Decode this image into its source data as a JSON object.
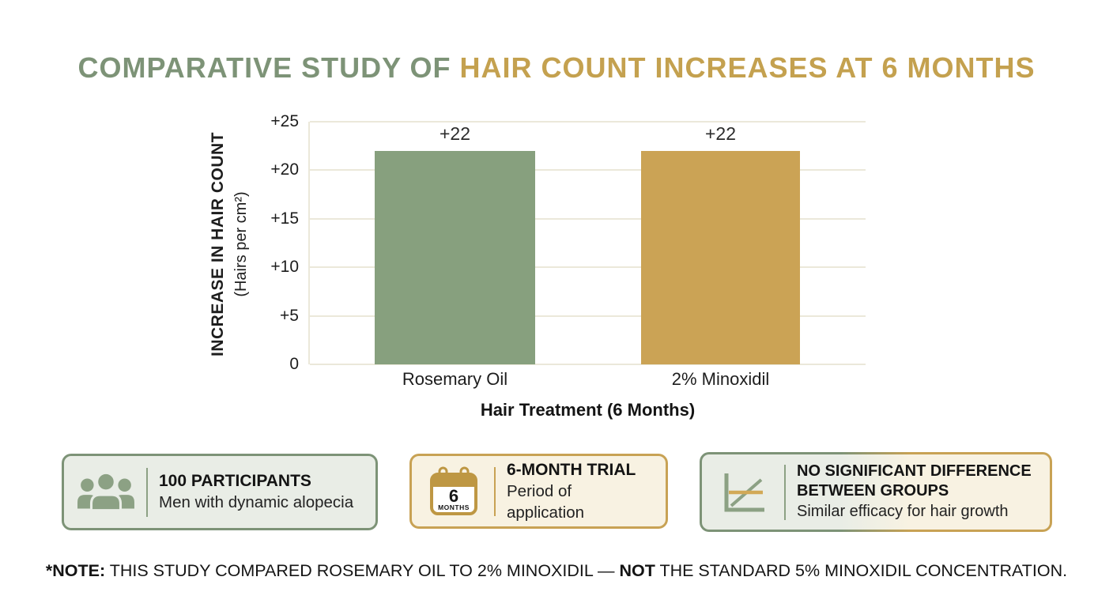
{
  "title": {
    "part1": "COMPARATIVE STUDY OF ",
    "part2": "HAIR COUNT INCREASES AT 6 MONTHS"
  },
  "chart_data": {
    "type": "bar",
    "categories": [
      "Rosemary Oil",
      "2% Minoxidil"
    ],
    "values": [
      22,
      22
    ],
    "bar_labels": [
      "+22",
      "+22"
    ],
    "bar_colors": [
      "#87A07E",
      "#CBA355"
    ],
    "xlabel": "Hair Treatment (6 Months)",
    "ylabel_line1": "INCREASE IN HAIR COUNT",
    "ylabel_line2": "(Hairs per cm²)",
    "ylim": [
      0,
      25
    ],
    "yticks": [
      "0",
      "+5",
      "+10",
      "+15",
      "+20",
      "+25"
    ],
    "grid": true,
    "legend": false
  },
  "cards": [
    {
      "icon": "people-group-icon",
      "title": "100 PARTICIPANTS",
      "subtitle": "Men with dynamic alopecia"
    },
    {
      "icon": "calendar-icon",
      "calendar_number": "6",
      "calendar_unit": "MONTHS",
      "title": "6-MONTH TRIAL",
      "subtitle": "Period of application"
    },
    {
      "icon": "equal-trend-chart-icon",
      "title": "NO SIGNIFICANT DIFFERENCE BETWEEN GROUPS",
      "subtitle": "Similar efficacy for hair growth"
    }
  ],
  "note": {
    "label": "*NOTE:",
    "text1": " THIS STUDY COMPARED ROSEMARY OIL TO 2% MINOXIDIL — ",
    "emphasis": "NOT",
    "text2": " THE STANDARD 5% MINOXIDIL CONCENTRATION."
  },
  "colors": {
    "title_green": "#7D9377",
    "title_gold": "#C4A14F",
    "bar_green": "#87A07E",
    "bar_gold": "#CBA355",
    "card_green_border": "#7D9377",
    "card_gold_border": "#C8A254",
    "card_green_bg": "#E9EDE6",
    "card_cream_bg": "#F8F2E2",
    "gridline": "#EBE8DA"
  }
}
